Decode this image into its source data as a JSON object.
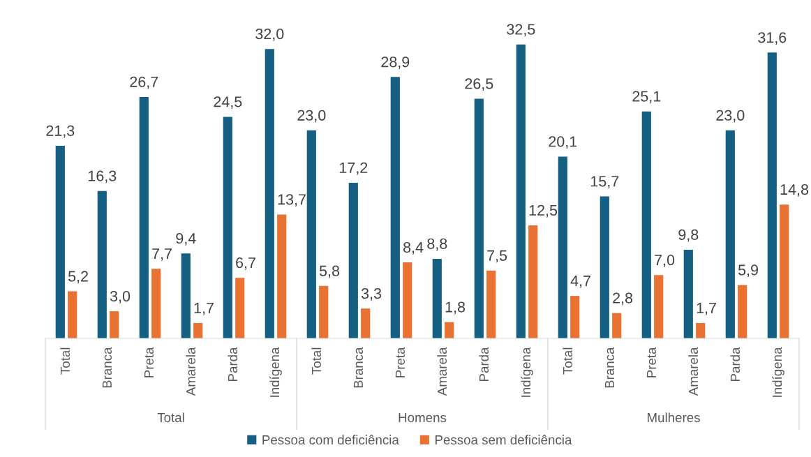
{
  "chart_data": {
    "type": "bar",
    "categories": [
      "Total",
      "Branca",
      "Preta",
      "Amarela",
      "Parda",
      "Indígena",
      "Total",
      "Branca",
      "Preta",
      "Amarela",
      "Parda",
      "Indígena",
      "Total",
      "Branca",
      "Preta",
      "Amarela",
      "Parda",
      "Indígena"
    ],
    "series": [
      {
        "name": "Pessoa com deficiência",
        "color": "#156082",
        "values": [
          21.3,
          16.3,
          26.7,
          9.4,
          24.5,
          32.0,
          23.0,
          17.2,
          28.9,
          8.8,
          26.5,
          32.5,
          20.1,
          15.7,
          25.1,
          9.8,
          23.0,
          31.6
        ],
        "value_labels": [
          "21,3",
          "16,3",
          "26,7",
          "9,4",
          "24,5",
          "32,0",
          "23,0",
          "17,2",
          "28,9",
          "8,8",
          "26,5",
          "32,5",
          "20,1",
          "15,7",
          "25,1",
          "9,8",
          "23,0",
          "31,6"
        ]
      },
      {
        "name": "Pessoa sem deficiência",
        "color": "#e97132",
        "values": [
          5.2,
          3.0,
          7.7,
          1.7,
          6.7,
          13.7,
          5.8,
          3.3,
          8.4,
          1.8,
          7.5,
          12.5,
          4.7,
          2.8,
          7.0,
          1.7,
          5.9,
          14.8
        ],
        "value_labels": [
          "5,2",
          "3,0",
          "7,7",
          "1,7",
          "6,7",
          "13,7",
          "5,8",
          "3,3",
          "8,4",
          "1,8",
          "7,5",
          "12,5",
          "4,7",
          "2,8",
          "7,0",
          "1,7",
          "5,9",
          "14,8"
        ]
      }
    ],
    "annotations": [
      "Total",
      "Homens",
      "Mulheres"
    ],
    "legend": "bottom",
    "tick_labels": "x"
  }
}
